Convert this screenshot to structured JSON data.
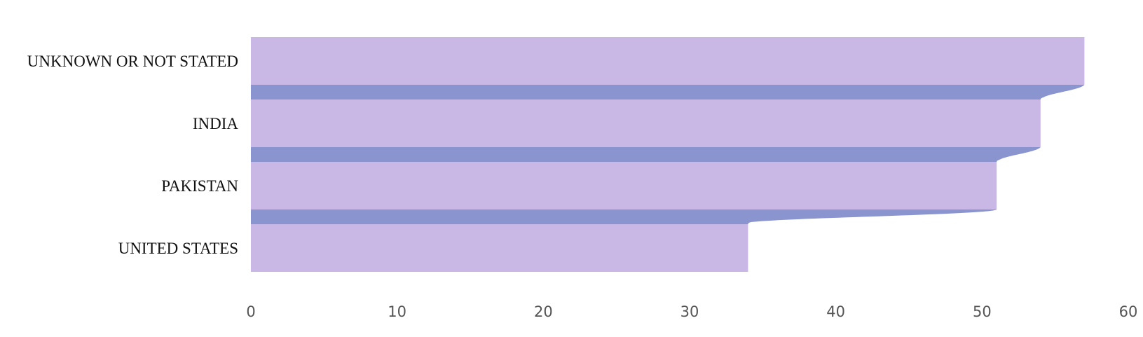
{
  "chart_data": {
    "type": "bar",
    "orientation": "horizontal",
    "categories": [
      "UNKNOWN OR NOT STATED",
      "INDIA",
      "PAKISTAN",
      "UNITED STATES"
    ],
    "values": [
      57,
      54,
      51,
      34
    ],
    "xlim": [
      0,
      60
    ],
    "x_ticks": [
      0,
      10,
      20,
      30,
      40,
      50,
      60
    ],
    "title": "",
    "xlabel": "",
    "ylabel": "",
    "grid": false,
    "connectors": true,
    "colors": {
      "bar": "#c9b8e6",
      "connector": "#8a94cf",
      "label": "#111111",
      "tick": "#555555",
      "background": "#ffffff"
    }
  }
}
